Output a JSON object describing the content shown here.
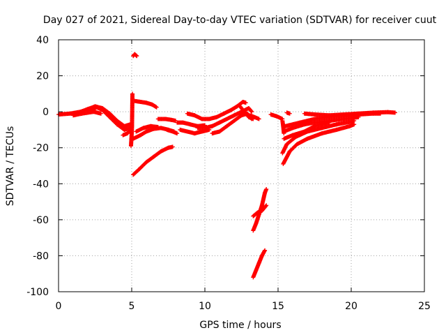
{
  "chart_data": {
    "type": "scatter",
    "title": "Day 027 of 2021, Sidereal Day-to-day VTEC variation (SDTVAR) for receiver cuut",
    "xlabel": "GPS time / hours",
    "ylabel": "SDTVAR / TECUs",
    "xlim": [
      0,
      25
    ],
    "ylim": [
      -100,
      40
    ],
    "xticks": [
      0,
      5,
      10,
      15,
      20,
      25
    ],
    "yticks": [
      -100,
      -80,
      -60,
      -40,
      -20,
      0,
      20,
      40
    ],
    "grid": true,
    "marker": "plus",
    "color": "#ff0000",
    "tracks": [
      {
        "points": [
          [
            0,
            -1.5
          ],
          [
            0.8,
            -1
          ],
          [
            1.5,
            0
          ],
          [
            2.0,
            1.5
          ],
          [
            2.5,
            3
          ],
          [
            3.0,
            2
          ],
          [
            3.5,
            -1
          ],
          [
            4.0,
            -5
          ],
          [
            4.5,
            -8
          ],
          [
            4.9,
            -7
          ]
        ]
      },
      {
        "points": [
          [
            2.2,
            0.5
          ],
          [
            2.6,
            2.5
          ],
          [
            3.0,
            1
          ],
          [
            3.5,
            -3
          ],
          [
            4.0,
            -7
          ],
          [
            4.5,
            -10
          ],
          [
            4.9,
            -9
          ]
        ]
      },
      {
        "points": [
          [
            1.0,
            -2
          ],
          [
            1.6,
            -1
          ],
          [
            2.4,
            0
          ],
          [
            2.9,
            -1
          ]
        ]
      },
      {
        "points": [
          [
            4.4,
            -13
          ],
          [
            4.7,
            -12
          ],
          [
            4.95,
            -10
          ]
        ]
      },
      {
        "points": [
          [
            4.95,
            -19
          ],
          [
            4.98,
            -15
          ],
          [
            5.0,
            -12
          ],
          [
            5.02,
            -8
          ],
          [
            5.05,
            10
          ]
        ]
      },
      {
        "points": [
          [
            5.1,
            31
          ],
          [
            5.2,
            32
          ],
          [
            5.35,
            31
          ]
        ]
      },
      {
        "points": [
          [
            5.1,
            -35
          ],
          [
            5.5,
            -32
          ],
          [
            6.0,
            -28
          ],
          [
            6.5,
            -25
          ],
          [
            7.0,
            -22
          ],
          [
            7.5,
            -20
          ],
          [
            7.8,
            -19.5
          ]
        ]
      },
      {
        "points": [
          [
            5.2,
            6
          ],
          [
            5.6,
            5.5
          ],
          [
            6.0,
            5
          ],
          [
            6.4,
            4
          ],
          [
            6.7,
            2.5
          ]
        ]
      },
      {
        "points": [
          [
            5.1,
            -15
          ],
          [
            5.6,
            -13
          ],
          [
            6.0,
            -11
          ],
          [
            6.5,
            -9.5
          ],
          [
            7.0,
            -9
          ],
          [
            7.5,
            -10
          ],
          [
            7.9,
            -11
          ]
        ]
      },
      {
        "points": [
          [
            5.3,
            -11
          ],
          [
            5.8,
            -9
          ],
          [
            6.3,
            -8
          ],
          [
            6.8,
            -8.5
          ]
        ]
      },
      {
        "points": [
          [
            6.8,
            -4
          ],
          [
            7.3,
            -4
          ],
          [
            7.7,
            -4.5
          ],
          [
            8.0,
            -5
          ]
        ]
      },
      {
        "points": [
          [
            7.4,
            -10
          ],
          [
            7.8,
            -11
          ],
          [
            8.1,
            -12
          ]
        ]
      },
      {
        "points": [
          [
            8.1,
            -6
          ],
          [
            8.5,
            -6
          ],
          [
            9.0,
            -7
          ],
          [
            9.5,
            -8
          ],
          [
            10.0,
            -7.5
          ]
        ]
      },
      {
        "points": [
          [
            8.3,
            -10
          ],
          [
            8.8,
            -11
          ],
          [
            9.3,
            -12
          ],
          [
            9.8,
            -11
          ],
          [
            10.3,
            -10
          ]
        ]
      },
      {
        "points": [
          [
            8.8,
            -1
          ],
          [
            9.3,
            -2
          ],
          [
            9.8,
            -4
          ],
          [
            10.3,
            -4
          ],
          [
            10.8,
            -3
          ],
          [
            11.3,
            -1
          ],
          [
            11.8,
            1
          ],
          [
            12.2,
            3
          ],
          [
            12.6,
            5.5
          ],
          [
            12.8,
            5
          ]
        ]
      },
      {
        "points": [
          [
            9.5,
            -9
          ],
          [
            10.0,
            -9
          ],
          [
            10.5,
            -8
          ],
          [
            11.0,
            -6
          ],
          [
            11.5,
            -4
          ],
          [
            12.0,
            -2
          ],
          [
            12.5,
            0
          ],
          [
            13.0,
            2
          ],
          [
            13.2,
            0
          ]
        ]
      },
      {
        "points": [
          [
            10.5,
            -12
          ],
          [
            11.0,
            -11
          ],
          [
            11.5,
            -8
          ],
          [
            12.0,
            -5
          ],
          [
            12.5,
            -2
          ],
          [
            12.9,
            -1
          ],
          [
            13.2,
            -4
          ]
        ]
      },
      {
        "points": [
          [
            12.4,
            3
          ],
          [
            12.7,
            0
          ],
          [
            13.0,
            -3
          ],
          [
            13.3,
            -4
          ]
        ]
      },
      {
        "points": [
          [
            13.1,
            -2
          ],
          [
            13.4,
            -3
          ],
          [
            13.7,
            -4
          ]
        ]
      },
      {
        "points": [
          [
            13.3,
            -66
          ],
          [
            13.5,
            -62
          ],
          [
            13.7,
            -57
          ],
          [
            13.9,
            -52
          ],
          [
            14.1,
            -45
          ],
          [
            14.2,
            -43
          ]
        ]
      },
      {
        "points": [
          [
            13.3,
            -58
          ],
          [
            13.6,
            -56
          ],
          [
            13.9,
            -55
          ],
          [
            14.2,
            -52
          ]
        ]
      },
      {
        "points": [
          [
            13.3,
            -92
          ],
          [
            13.5,
            -88
          ],
          [
            13.7,
            -84
          ],
          [
            13.9,
            -80
          ],
          [
            14.1,
            -77
          ]
        ]
      },
      {
        "points": [
          [
            14.5,
            -1.5
          ],
          [
            14.9,
            -2.5
          ],
          [
            15.3,
            -4
          ]
        ]
      },
      {
        "points": [
          [
            15.3,
            -5
          ],
          [
            15.35,
            -8
          ],
          [
            15.4,
            -12
          ]
        ]
      },
      {
        "points": [
          [
            15.35,
            -29
          ],
          [
            15.8,
            -22
          ],
          [
            16.3,
            -18
          ],
          [
            17.0,
            -15
          ],
          [
            18.0,
            -12
          ],
          [
            19.0,
            -10
          ],
          [
            19.9,
            -8
          ],
          [
            20.2,
            -7
          ]
        ]
      },
      {
        "points": [
          [
            15.3,
            -23
          ],
          [
            15.6,
            -18
          ],
          [
            16.2,
            -14
          ],
          [
            17.0,
            -11
          ],
          [
            18.0,
            -9
          ],
          [
            19.0,
            -7
          ],
          [
            20.0,
            -5.5
          ],
          [
            20.2,
            -5
          ]
        ]
      },
      {
        "points": [
          [
            15.4,
            -15
          ],
          [
            16.0,
            -13
          ],
          [
            16.8,
            -11
          ],
          [
            17.5,
            -8
          ],
          [
            18.5,
            -6
          ]
        ]
      },
      {
        "points": [
          [
            15.4,
            -11
          ],
          [
            16.0,
            -9
          ],
          [
            16.8,
            -7
          ],
          [
            17.5,
            -6
          ],
          [
            18.5,
            -5
          ],
          [
            19.5,
            -4
          ],
          [
            20.5,
            -3
          ]
        ]
      },
      {
        "points": [
          [
            15.5,
            -8
          ],
          [
            16.5,
            -6
          ],
          [
            17.5,
            -4
          ],
          [
            18.5,
            -3
          ],
          [
            19.5,
            -2
          ],
          [
            20.5,
            -1.5
          ],
          [
            21.5,
            -1
          ],
          [
            22.0,
            -1
          ]
        ]
      },
      {
        "points": [
          [
            16.8,
            -1
          ],
          [
            17.5,
            -1.5
          ],
          [
            18.5,
            -2
          ],
          [
            19.5,
            -1.5
          ],
          [
            20.5,
            -1
          ],
          [
            21.5,
            -0.5
          ],
          [
            22.5,
            -0.2
          ],
          [
            23.0,
            -0.5
          ]
        ]
      },
      {
        "points": [
          [
            15.6,
            -0.5
          ],
          [
            15.8,
            -1
          ]
        ]
      }
    ]
  }
}
